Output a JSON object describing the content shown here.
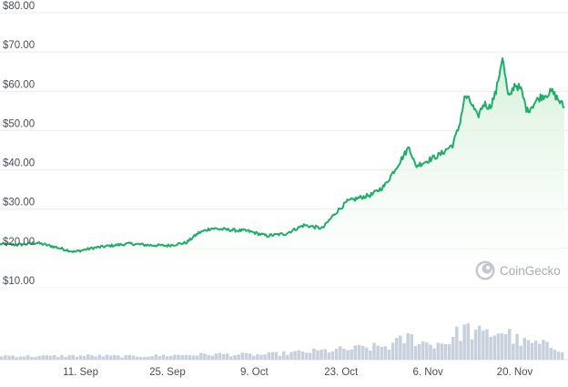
{
  "watermark": {
    "text": "CoinGecko",
    "icon": "gecko-logo-icon"
  },
  "colors": {
    "line": "#1fae6a",
    "area_top": "#d4f0d8",
    "area_bottom": "#ffffff",
    "grid": "#ececec",
    "volume": "#c7d0dc",
    "text": "#4a4f55"
  },
  "chart_data": {
    "type": "line",
    "title": "",
    "xlabel": "",
    "ylabel": "",
    "ylim": [
      0,
      80
    ],
    "yticks": [
      10,
      20,
      30,
      40,
      50,
      60,
      70,
      80
    ],
    "ytick_labels": [
      "$10.00",
      "$20.00",
      "$30.00",
      "$40.00",
      "$50.00",
      "$60.00",
      "$70.00",
      "$80.00"
    ],
    "xticks": [
      "2023-09-11",
      "2023-09-25",
      "2023-10-09",
      "2023-10-23",
      "2023-11-06",
      "2023-11-20"
    ],
    "xtick_labels": [
      "11. Sep",
      "25. Sep",
      "9. Oct",
      "23. Oct",
      "6. Nov",
      "20. Nov"
    ],
    "grid": true,
    "legend": "none",
    "series": [
      {
        "x": [
          "2023-08-29",
          "2023-09-01",
          "2023-09-04",
          "2023-09-07",
          "2023-09-10",
          "2023-09-13",
          "2023-09-16",
          "2023-09-19",
          "2023-09-22",
          "2023-09-25",
          "2023-09-28",
          "2023-09-30",
          "2023-10-02",
          "2023-10-05",
          "2023-10-08",
          "2023-10-11",
          "2023-10-14",
          "2023-10-17",
          "2023-10-20",
          "2023-10-22",
          "2023-10-24",
          "2023-10-26",
          "2023-10-28",
          "2023-10-30",
          "2023-11-01",
          "2023-11-03",
          "2023-11-04",
          "2023-11-06",
          "2023-11-08",
          "2023-11-10",
          "2023-11-11",
          "2023-11-12",
          "2023-11-13",
          "2023-11-14",
          "2023-11-15",
          "2023-11-16",
          "2023-11-17",
          "2023-11-18",
          "2023-11-19",
          "2023-11-20",
          "2023-11-21",
          "2023-11-22",
          "2023-11-24",
          "2023-11-26",
          "2023-11-28"
        ],
        "y": [
          20.2,
          20.0,
          20.5,
          19.4,
          18.2,
          19.2,
          19.8,
          20.3,
          19.9,
          19.8,
          20.5,
          23.0,
          24.2,
          23.8,
          23.5,
          22.3,
          22.8,
          25.0,
          24.2,
          28.0,
          31.0,
          32.0,
          32.8,
          35.0,
          40.0,
          45.0,
          40.0,
          41.5,
          43.0,
          45.5,
          50.0,
          58.0,
          56.0,
          52.5,
          56.0,
          55.0,
          59.0,
          68.0,
          57.0,
          61.0,
          59.5,
          54.0,
          57.5,
          59.0,
          55.0
        ]
      }
    ],
    "volume": {
      "x": [
        "2023-08-29",
        "2023-09-05",
        "2023-09-12",
        "2023-09-19",
        "2023-09-26",
        "2023-10-03",
        "2023-10-10",
        "2023-10-17",
        "2023-10-24",
        "2023-10-31",
        "2023-11-03",
        "2023-11-06",
        "2023-11-09",
        "2023-11-12",
        "2023-11-15",
        "2023-11-18",
        "2023-11-21",
        "2023-11-24",
        "2023-11-28"
      ],
      "relative": [
        0.12,
        0.1,
        0.12,
        0.1,
        0.13,
        0.16,
        0.14,
        0.22,
        0.3,
        0.4,
        0.65,
        0.45,
        0.5,
        0.9,
        0.7,
        0.85,
        0.5,
        0.45,
        0.3
      ]
    }
  }
}
